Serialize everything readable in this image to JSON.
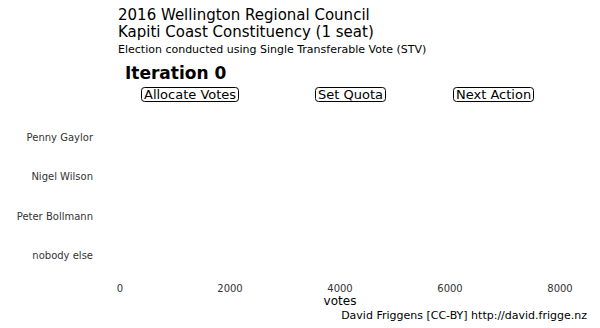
{
  "chart_data": {
    "type": "bar",
    "orientation": "horizontal",
    "title": "2016 Wellington Regional Council",
    "subtitle": "Kapiti Coast Constituency (1 seat)",
    "annotations": {
      "note": "Election conducted using Single Transferable Vote (STV)",
      "iteration": "Iteration 0",
      "buttons": [
        "Allocate Votes",
        "Set Quota",
        "Next Action"
      ],
      "caption": "David Friggens [CC-BY] http://david.frigge.nz"
    },
    "categories": [
      "Penny Gaylor",
      "Nigel Wilson",
      "Peter Bollmann",
      "nobody else"
    ],
    "values": [
      0,
      0,
      0,
      0
    ],
    "color": "#4472c4",
    "xlabel": "votes",
    "xlim": [
      0,
      8000
    ],
    "xticks": [
      0,
      2000,
      4000,
      6000,
      8000
    ],
    "grid": false
  }
}
